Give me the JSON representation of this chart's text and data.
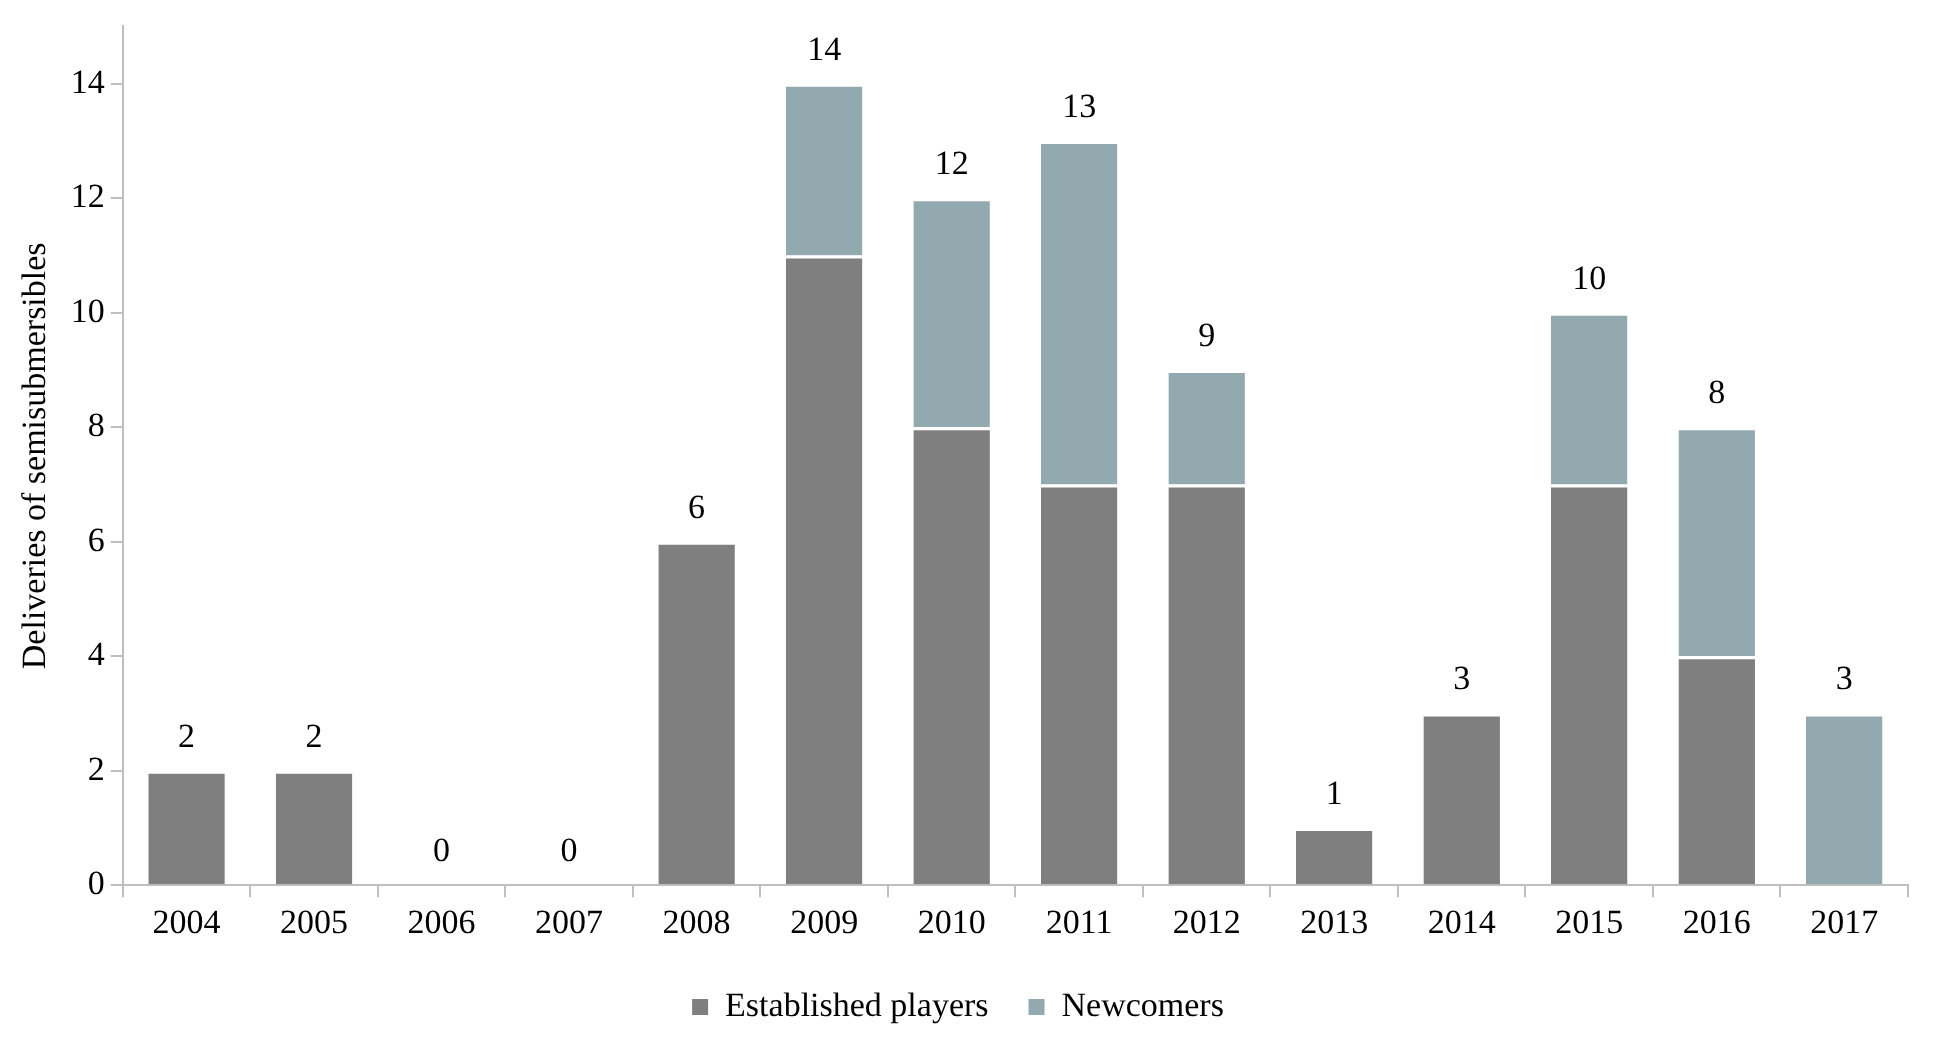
{
  "chart_data": {
    "type": "bar",
    "stacked": true,
    "ylabel": "Deliveries of semisubmersibles",
    "categories": [
      "2004",
      "2005",
      "2006",
      "2007",
      "2008",
      "2009",
      "2010",
      "2011",
      "2012",
      "2013",
      "2014",
      "2015",
      "2016",
      "2017"
    ],
    "series": [
      {
        "name": "Established players",
        "color": "#7f7f7f",
        "values": [
          2,
          2,
          0,
          0,
          6,
          11,
          8,
          7,
          7,
          1,
          3,
          7,
          4,
          0
        ]
      },
      {
        "name": "Newcomers",
        "color": "#93a9b0",
        "values": [
          0,
          0,
          0,
          0,
          0,
          3,
          4,
          6,
          2,
          0,
          0,
          3,
          4,
          3
        ]
      }
    ],
    "totals": [
      "2",
      "2",
      "0",
      "0",
      "6",
      "14",
      "12",
      "13",
      "9",
      "1",
      "3",
      "10",
      "8",
      "3"
    ],
    "ylim": [
      0,
      15
    ],
    "yticks": [
      0,
      2,
      4,
      6,
      8,
      10,
      12,
      14
    ],
    "grid": false,
    "legend": "bottom"
  }
}
